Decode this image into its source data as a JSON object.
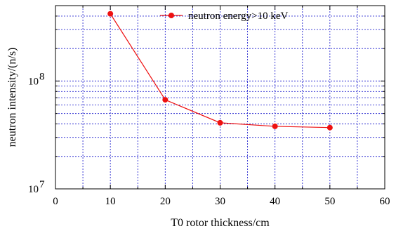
{
  "chart_data": {
    "type": "line",
    "xlabel": "T0 rotor thickness/cm",
    "ylabel": "neutron intensity/(n/s)",
    "xlim": [
      0,
      60
    ],
    "ylim": [
      10000000,
      500000000
    ],
    "yscale": "log",
    "grid": true,
    "legend_position": "top-right",
    "x_ticks": [
      "0",
      "10",
      "20",
      "30",
      "40",
      "50",
      "60"
    ],
    "y_tick_labels": [
      {
        "base": "10",
        "exp": "7"
      },
      {
        "base": "10",
        "exp": "8"
      }
    ],
    "series": [
      {
        "name": "neutron energy>10 keV",
        "color": "#ee1111",
        "x": [
          10,
          20,
          30,
          40,
          50
        ],
        "values": [
          420000000,
          67000000,
          41000000,
          38000000,
          37000000
        ]
      }
    ]
  }
}
